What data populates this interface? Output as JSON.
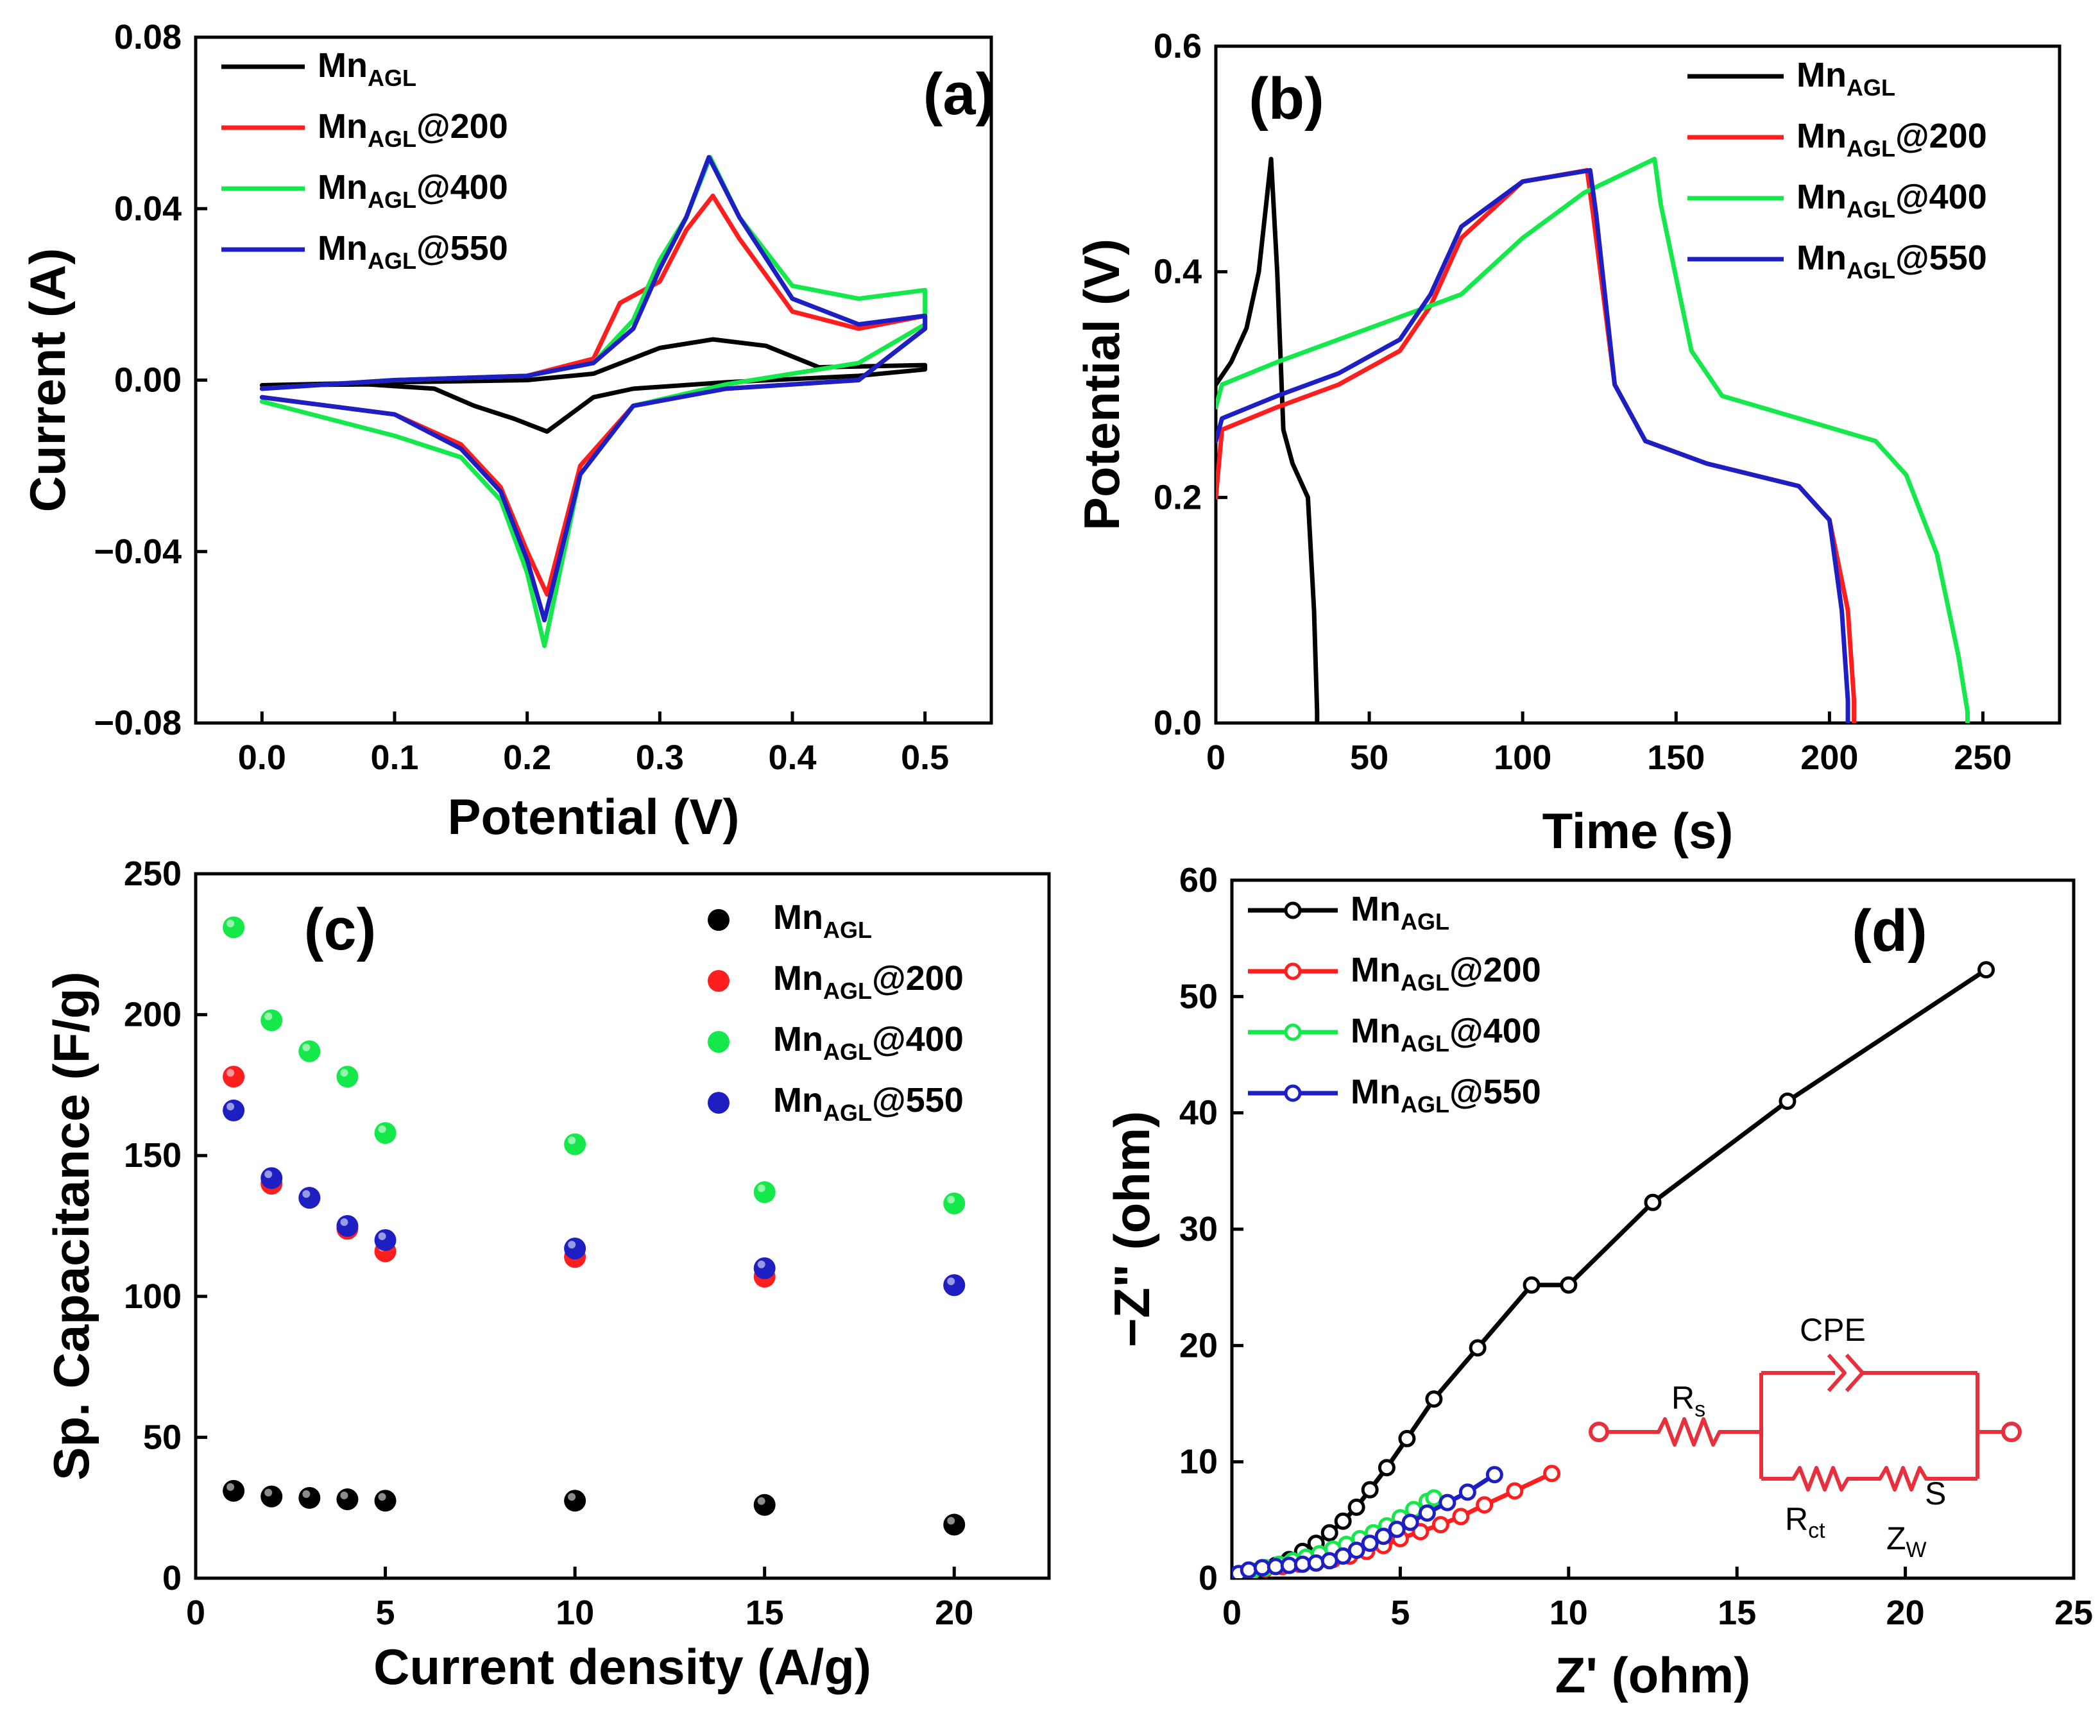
{
  "colors": {
    "black": "#000000",
    "red": "#ff1e1e",
    "green": "#15e84b",
    "blue": "#1d1fc2",
    "circuit": "#e8303c"
  },
  "legend": {
    "entries": [
      {
        "base": "Mn",
        "sub": "AGL",
        "suffix": ""
      },
      {
        "base": "Mn",
        "sub": "AGL",
        "suffix": "@200"
      },
      {
        "base": "Mn",
        "sub": "AGL",
        "suffix": "@400"
      },
      {
        "base": "Mn",
        "sub": "AGL",
        "suffix": "@550"
      }
    ]
  },
  "chart_data": [
    {
      "id": "a",
      "type": "line",
      "panel_label": "(a)",
      "xlabel": "Potential (V)",
      "ylabel": "Current (A)",
      "xlim": [
        -0.05,
        0.55
      ],
      "ylim": [
        -0.08,
        0.08
      ],
      "xticks": [
        0.0,
        0.1,
        0.2,
        0.3,
        0.4,
        0.5
      ],
      "xtick_labels": [
        "0.0",
        "0.1",
        "0.2",
        "0.3",
        "0.4",
        "0.5"
      ],
      "yticks": [
        -0.08,
        -0.04,
        0.0,
        0.04,
        0.08
      ],
      "ytick_labels": [
        "−0.08",
        "−0.04",
        "0.00",
        "0.04",
        "0.08"
      ],
      "series": [
        {
          "name": "MnAGL",
          "color": "black",
          "x": [
            0.0,
            0.1,
            0.2,
            0.25,
            0.3,
            0.34,
            0.38,
            0.42,
            0.5,
            0.5,
            0.45,
            0.35,
            0.28,
            0.25,
            0.215,
            0.19,
            0.16,
            0.13,
            0.08,
            0.0
          ],
          "y": [
            -0.0012,
            -0.0005,
            0.0,
            0.0015,
            0.0075,
            0.0095,
            0.008,
            0.003,
            0.0035,
            0.0025,
            0.001,
            -0.0005,
            -0.002,
            -0.004,
            -0.012,
            -0.009,
            -0.006,
            -0.002,
            -0.001,
            -0.0012
          ]
        },
        {
          "name": "MnAGL@200",
          "color": "red",
          "x": [
            0.0,
            0.1,
            0.2,
            0.25,
            0.27,
            0.3,
            0.32,
            0.34,
            0.36,
            0.4,
            0.45,
            0.5,
            0.5,
            0.45,
            0.35,
            0.28,
            0.24,
            0.215,
            0.2,
            0.18,
            0.15,
            0.1,
            0.0
          ],
          "y": [
            -0.002,
            0.0,
            0.001,
            0.005,
            0.018,
            0.023,
            0.035,
            0.043,
            0.033,
            0.016,
            0.012,
            0.015,
            0.012,
            0.0,
            -0.002,
            -0.006,
            -0.02,
            -0.05,
            -0.04,
            -0.025,
            -0.015,
            -0.008,
            -0.004
          ]
        },
        {
          "name": "MnAGL@400",
          "color": "green",
          "x": [
            0.0,
            0.1,
            0.2,
            0.25,
            0.28,
            0.3,
            0.32,
            0.338,
            0.36,
            0.4,
            0.45,
            0.5,
            0.5,
            0.45,
            0.35,
            0.28,
            0.24,
            0.213,
            0.2,
            0.18,
            0.15,
            0.1,
            0.0
          ],
          "y": [
            -0.002,
            0.0,
            0.001,
            0.004,
            0.014,
            0.028,
            0.038,
            0.052,
            0.038,
            0.022,
            0.019,
            0.021,
            0.013,
            0.004,
            -0.001,
            -0.006,
            -0.022,
            -0.062,
            -0.045,
            -0.028,
            -0.018,
            -0.013,
            -0.005
          ]
        },
        {
          "name": "MnAGL@550",
          "color": "blue",
          "x": [
            0.0,
            0.1,
            0.2,
            0.25,
            0.28,
            0.3,
            0.32,
            0.337,
            0.36,
            0.4,
            0.45,
            0.5,
            0.5,
            0.45,
            0.35,
            0.28,
            0.24,
            0.213,
            0.2,
            0.18,
            0.15,
            0.1,
            0.0
          ],
          "y": [
            -0.002,
            0.0,
            0.001,
            0.004,
            0.012,
            0.026,
            0.038,
            0.052,
            0.038,
            0.019,
            0.013,
            0.015,
            0.012,
            0.0,
            -0.002,
            -0.006,
            -0.022,
            -0.056,
            -0.042,
            -0.026,
            -0.016,
            -0.008,
            -0.004
          ]
        }
      ]
    },
    {
      "id": "b",
      "type": "line",
      "panel_label": "(b)",
      "xlabel": "Time (s)",
      "ylabel": "Potential (V)",
      "xlim": [
        0,
        275
      ],
      "ylim": [
        0,
        0.6
      ],
      "xticks": [
        0,
        50,
        100,
        150,
        200,
        250
      ],
      "xtick_labels": [
        "0",
        "50",
        "100",
        "150",
        "200",
        "250"
      ],
      "yticks": [
        0.0,
        0.2,
        0.4,
        0.6
      ],
      "ytick_labels": [
        "0.0",
        "0.2",
        "0.4",
        "0.6"
      ],
      "series": [
        {
          "name": "MnAGL",
          "color": "black",
          "x": [
            0,
            5,
            10,
            14,
            16,
            18,
            20,
            22,
            25,
            30,
            32,
            33,
            33
          ],
          "y": [
            0.3,
            0.32,
            0.35,
            0.4,
            0.45,
            0.5,
            0.4,
            0.26,
            0.23,
            0.2,
            0.1,
            0.01,
            0.0
          ]
        },
        {
          "name": "MnAGL@200",
          "color": "red",
          "x": [
            0,
            2,
            20,
            40,
            60,
            70,
            80,
            100,
            121,
            123,
            130,
            140,
            160,
            190,
            200,
            206,
            208,
            208
          ],
          "y": [
            0.2,
            0.26,
            0.28,
            0.3,
            0.33,
            0.37,
            0.43,
            0.48,
            0.49,
            0.45,
            0.3,
            0.25,
            0.23,
            0.21,
            0.18,
            0.1,
            0.02,
            0.0
          ]
        },
        {
          "name": "MnAGL@400",
          "color": "green",
          "x": [
            0,
            2,
            20,
            40,
            60,
            80,
            100,
            120,
            143,
            145,
            155,
            165,
            190,
            215,
            225,
            235,
            242,
            245,
            245
          ],
          "y": [
            0.28,
            0.3,
            0.32,
            0.34,
            0.36,
            0.38,
            0.43,
            0.47,
            0.5,
            0.46,
            0.33,
            0.29,
            0.27,
            0.25,
            0.22,
            0.15,
            0.06,
            0.01,
            0.0
          ]
        },
        {
          "name": "MnAGL@550",
          "color": "blue",
          "x": [
            0,
            2,
            20,
            40,
            60,
            70,
            80,
            100,
            122,
            124,
            130,
            140,
            160,
            190,
            200,
            204,
            206,
            206
          ],
          "y": [
            0.25,
            0.27,
            0.29,
            0.31,
            0.34,
            0.38,
            0.44,
            0.48,
            0.49,
            0.45,
            0.3,
            0.25,
            0.23,
            0.21,
            0.18,
            0.1,
            0.02,
            0.0
          ]
        }
      ]
    },
    {
      "id": "c",
      "type": "scatter",
      "panel_label": "(c)",
      "xlabel": "Current density (A/g)",
      "ylabel": "Sp. Capacitance (F/g)",
      "xlim": [
        0,
        22.5
      ],
      "ylim": [
        0,
        250
      ],
      "xticks": [
        0,
        5,
        10,
        15,
        20
      ],
      "xtick_labels": [
        "0",
        "5",
        "10",
        "15",
        "20"
      ],
      "yticks": [
        0,
        50,
        100,
        150,
        200,
        250
      ],
      "ytick_labels": [
        "0",
        "50",
        "100",
        "150",
        "200",
        "250"
      ],
      "series": [
        {
          "name": "MnAGL",
          "color": "black",
          "x": [
            1,
            2,
            3,
            4,
            5,
            10,
            15,
            20
          ],
          "y": [
            31,
            29,
            28.5,
            28,
            27.5,
            27.5,
            26,
            19
          ]
        },
        {
          "name": "MnAGL@200",
          "color": "red",
          "x": [
            1,
            2,
            3,
            4,
            5,
            10,
            15,
            20
          ],
          "y": [
            178,
            140,
            135,
            124,
            116,
            114,
            107,
            104
          ]
        },
        {
          "name": "MnAGL@400",
          "color": "green",
          "x": [
            1,
            2,
            3,
            4,
            5,
            10,
            15,
            20
          ],
          "y": [
            231,
            198,
            187,
            178,
            158,
            154,
            137,
            133
          ]
        },
        {
          "name": "MnAGL@550",
          "color": "blue",
          "x": [
            1,
            2,
            3,
            4,
            5,
            10,
            15,
            20
          ],
          "y": [
            166,
            142,
            135,
            125,
            120,
            117,
            110,
            104
          ]
        }
      ]
    },
    {
      "id": "d",
      "type": "line",
      "panel_label": "(d)",
      "xlabel": "Z' (ohm)",
      "ylabel": "−Z\" (ohm)",
      "xlim": [
        0,
        25
      ],
      "ylim": [
        0,
        60
      ],
      "xticks": [
        0,
        5,
        10,
        15,
        20,
        25
      ],
      "xtick_labels": [
        "0",
        "5",
        "10",
        "15",
        "20",
        "25"
      ],
      "yticks": [
        0,
        10,
        20,
        30,
        40,
        50,
        60
      ],
      "ytick_labels": [
        "0",
        "10",
        "20",
        "30",
        "40",
        "50",
        "60"
      ],
      "series": [
        {
          "name": "MnAGL",
          "color": "black",
          "x": [
            0.2,
            0.5,
            0.9,
            1.3,
            1.7,
            2.1,
            2.5,
            2.9,
            3.3,
            3.7,
            4.1,
            4.6,
            5.2,
            6.0,
            7.3,
            8.9,
            10.0,
            12.5,
            16.5,
            22.4
          ],
          "y": [
            0.2,
            0.4,
            0.7,
            1.1,
            1.6,
            2.3,
            3.0,
            3.9,
            4.9,
            6.1,
            7.6,
            9.5,
            12.0,
            15.4,
            19.8,
            25.2,
            25.2,
            32.3,
            41.0,
            52.3
          ]
        },
        {
          "name": "MnAGL@200",
          "color": "red",
          "x": [
            0.2,
            0.6,
            1.0,
            1.5,
            2.0,
            2.5,
            3.0,
            3.5,
            4.0,
            4.5,
            5.0,
            5.6,
            6.2,
            6.8,
            7.5,
            8.4,
            9.5
          ],
          "y": [
            0.3,
            0.6,
            0.8,
            1.0,
            1.2,
            1.4,
            1.6,
            1.9,
            2.3,
            2.8,
            3.4,
            4.0,
            4.6,
            5.3,
            6.3,
            7.5,
            9.0
          ]
        },
        {
          "name": "MnAGL@400",
          "color": "green",
          "x": [
            0.2,
            0.6,
            1.0,
            1.4,
            1.8,
            2.2,
            2.6,
            3.0,
            3.4,
            3.8,
            4.2,
            4.6,
            5.0,
            5.4,
            5.8,
            6.0
          ],
          "y": [
            0.3,
            0.6,
            0.9,
            1.2,
            1.5,
            1.8,
            2.1,
            2.5,
            2.9,
            3.4,
            3.9,
            4.5,
            5.2,
            5.9,
            6.6,
            6.9
          ]
        },
        {
          "name": "MnAGL@550",
          "color": "blue",
          "x": [
            0.2,
            0.5,
            0.9,
            1.3,
            1.7,
            2.1,
            2.5,
            2.9,
            3.3,
            3.7,
            4.1,
            4.5,
            4.9,
            5.3,
            5.8,
            6.4,
            7.0,
            7.8
          ],
          "y": [
            0.4,
            0.7,
            0.9,
            1.0,
            1.1,
            1.2,
            1.3,
            1.5,
            1.9,
            2.4,
            3.0,
            3.6,
            4.2,
            4.8,
            5.6,
            6.5,
            7.4,
            8.9
          ]
        }
      ],
      "circuit": {
        "rs": {
          "base": "R",
          "sub": "s"
        },
        "cpe": "CPE",
        "rct": {
          "base": "R",
          "sub": "ct"
        },
        "zw": {
          "base": "Z",
          "sub": "W"
        },
        "s_label": "S"
      }
    }
  ]
}
